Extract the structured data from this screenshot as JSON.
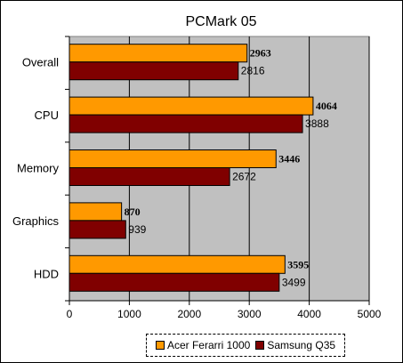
{
  "chart_data": {
    "type": "bar",
    "orientation": "horizontal",
    "title": "PCMark 05",
    "categories": [
      "Overall",
      "CPU",
      "Memory",
      "Graphics",
      "HDD"
    ],
    "series": [
      {
        "name": "Acer Ferarri 1000",
        "values": [
          2963,
          4064,
          3446,
          870,
          3595
        ],
        "color": "#ff9900",
        "label_bold": true
      },
      {
        "name": "Samsung Q35",
        "values": [
          2816,
          3888,
          2672,
          939,
          3499
        ],
        "color": "#800000",
        "label_bold": false
      }
    ],
    "xlim": [
      0,
      5000
    ],
    "xticks": [
      0,
      1000,
      2000,
      3000,
      4000,
      5000
    ],
    "plot_background": "#c0c0c0",
    "grid": true,
    "legend_position": "bottom"
  }
}
